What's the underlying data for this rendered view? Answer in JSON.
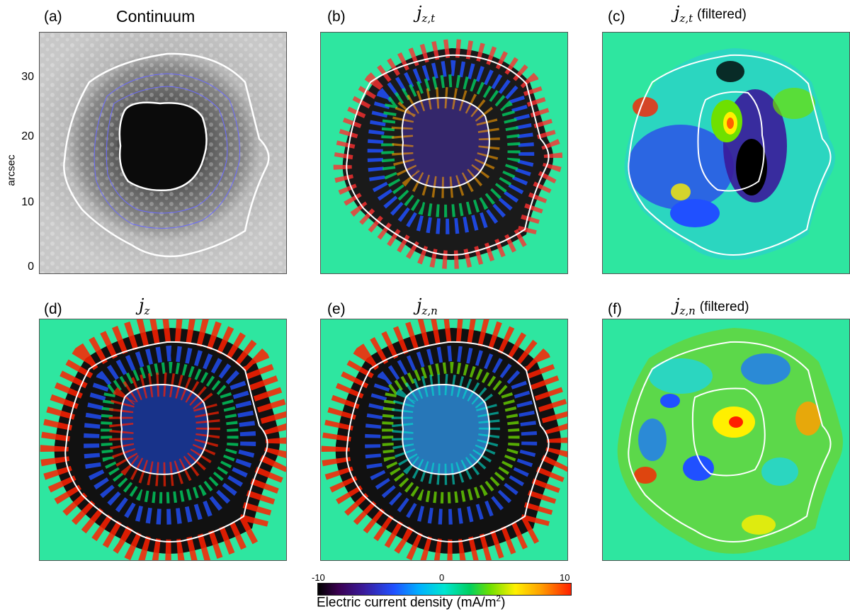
{
  "panels": {
    "a": {
      "label": "(a)",
      "title": "Continuum"
    },
    "b": {
      "label": "(b)",
      "title_main": "j",
      "title_sub": "z,t"
    },
    "c": {
      "label": "(c)",
      "title_main": "j",
      "title_sub": "z,t",
      "note": "(filtered)"
    },
    "d": {
      "label": "(d)",
      "title_main": "j",
      "title_sub": "z"
    },
    "e": {
      "label": "(e)",
      "title_main": "j",
      "title_sub": "z,n"
    },
    "f": {
      "label": "(f)",
      "title_main": "j",
      "title_sub": "z,n",
      "note": "(filtered)"
    }
  },
  "yaxis": {
    "label": "arcsec",
    "ticks": [
      "30",
      "20",
      "10",
      "0"
    ]
  },
  "colorbar": {
    "min_label": "-10",
    "mid_label": "0",
    "max_label": "10",
    "label_prefix": "Electric current density (mA/m",
    "label_sup": "2",
    "label_suffix": ")",
    "colors": [
      "#000000",
      "#3a1a9a",
      "#2050ff",
      "#00e5d0",
      "#00d060",
      "#fff000",
      "#ff2000"
    ]
  },
  "colors": {
    "background_field": "#2ee6a0",
    "contour": "#ffffff",
    "inner_contour": "#6b6bff"
  }
}
